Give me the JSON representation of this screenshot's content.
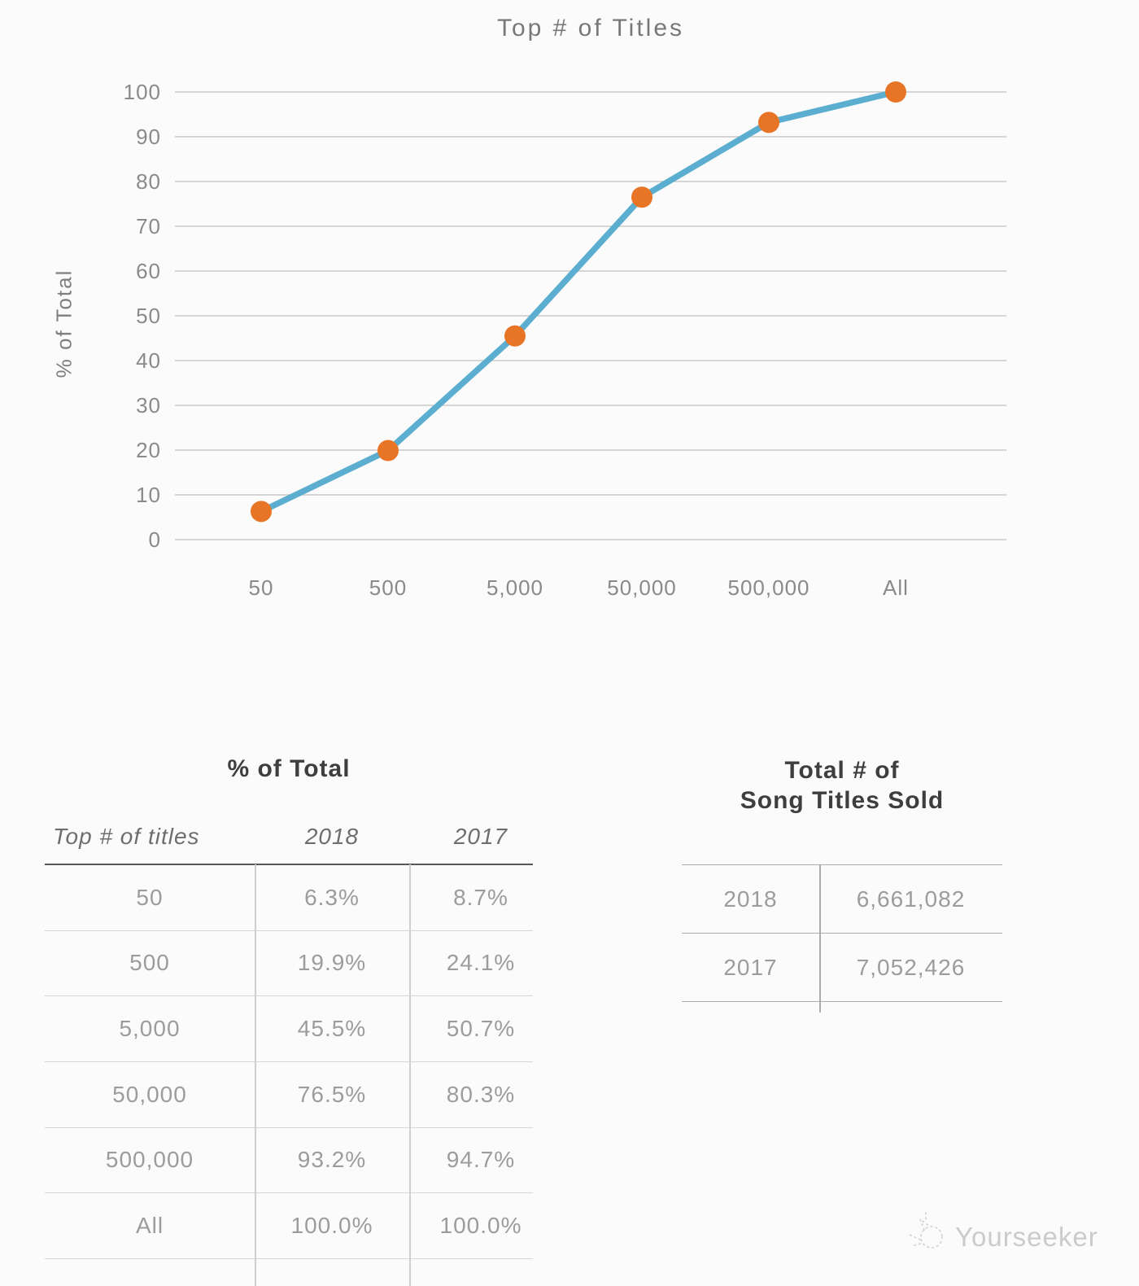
{
  "chart_data": {
    "type": "line",
    "title": "Top # of Titles",
    "xlabel": "",
    "ylabel": "% of Total",
    "categories": [
      "50",
      "500",
      "5,000",
      "50,000",
      "500,000",
      "All"
    ],
    "series": [
      {
        "name": "2018",
        "values": [
          6.3,
          19.9,
          45.5,
          76.5,
          93.2,
          100.0
        ]
      }
    ],
    "ylim": [
      0,
      100
    ],
    "ytick_step": 10,
    "grid": true,
    "legend": "none",
    "line_color": "#5BAED0",
    "marker_color": "#E87426",
    "grid_color": "#c9c9c9"
  },
  "tables": {
    "pct": {
      "title": "% of Total",
      "columns": [
        "Top # of titles",
        "2018",
        "2017"
      ],
      "rows": [
        {
          "label": "50",
          "y2018": "6.3%",
          "y2017": "8.7%"
        },
        {
          "label": "500",
          "y2018": "19.9%",
          "y2017": "24.1%"
        },
        {
          "label": "5,000",
          "y2018": "45.5%",
          "y2017": "50.7%"
        },
        {
          "label": "50,000",
          "y2018": "76.5%",
          "y2017": "80.3%"
        },
        {
          "label": "500,000",
          "y2018": "93.2%",
          "y2017": "94.7%"
        },
        {
          "label": "All",
          "y2018": "100.0%",
          "y2017": "100.0%"
        }
      ]
    },
    "totals": {
      "title_line1": "Total # of",
      "title_line2": "Song Titles Sold",
      "rows": [
        {
          "year": "2018",
          "value": "6,661,082"
        },
        {
          "year": "2017",
          "value": "7,052,426"
        }
      ]
    }
  },
  "watermark": {
    "text": "Yourseeker"
  }
}
